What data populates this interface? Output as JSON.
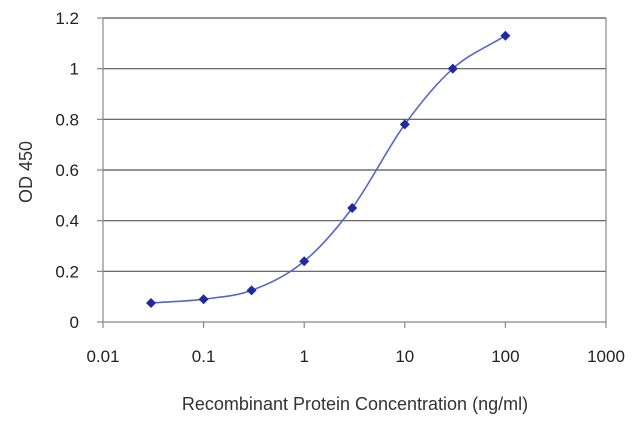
{
  "chart_data": {
    "type": "scatter",
    "xlabel": "Recombinant Protein Concentration (ng/ml)",
    "ylabel": "OD 450",
    "xscale": "log",
    "xlim": [
      0.01,
      1000
    ],
    "ylim": [
      0,
      1.2
    ],
    "x_ticks": [
      0.01,
      0.1,
      1,
      10,
      100,
      1000
    ],
    "x_tick_labels": [
      "0.01",
      "0.1",
      "1",
      "10",
      "100",
      "1000"
    ],
    "y_ticks": [
      0,
      0.2,
      0.4,
      0.6,
      0.8,
      1,
      1.2
    ],
    "y_tick_labels": [
      "0",
      "0.2",
      "0.4",
      "0.6",
      "0.8",
      "1",
      "1.2"
    ],
    "grid": "horizontal",
    "fit_line": "sigmoid",
    "colors": {
      "series": "#1f2a9e",
      "curve": "#5566cc",
      "grid": "#555555",
      "axis": "#888888"
    },
    "series": [
      {
        "x": [
          0.03,
          0.1,
          0.3,
          1,
          3,
          10,
          30,
          100
        ],
        "y": [
          0.075,
          0.09,
          0.125,
          0.24,
          0.45,
          0.78,
          1.0,
          1.13
        ]
      }
    ]
  }
}
